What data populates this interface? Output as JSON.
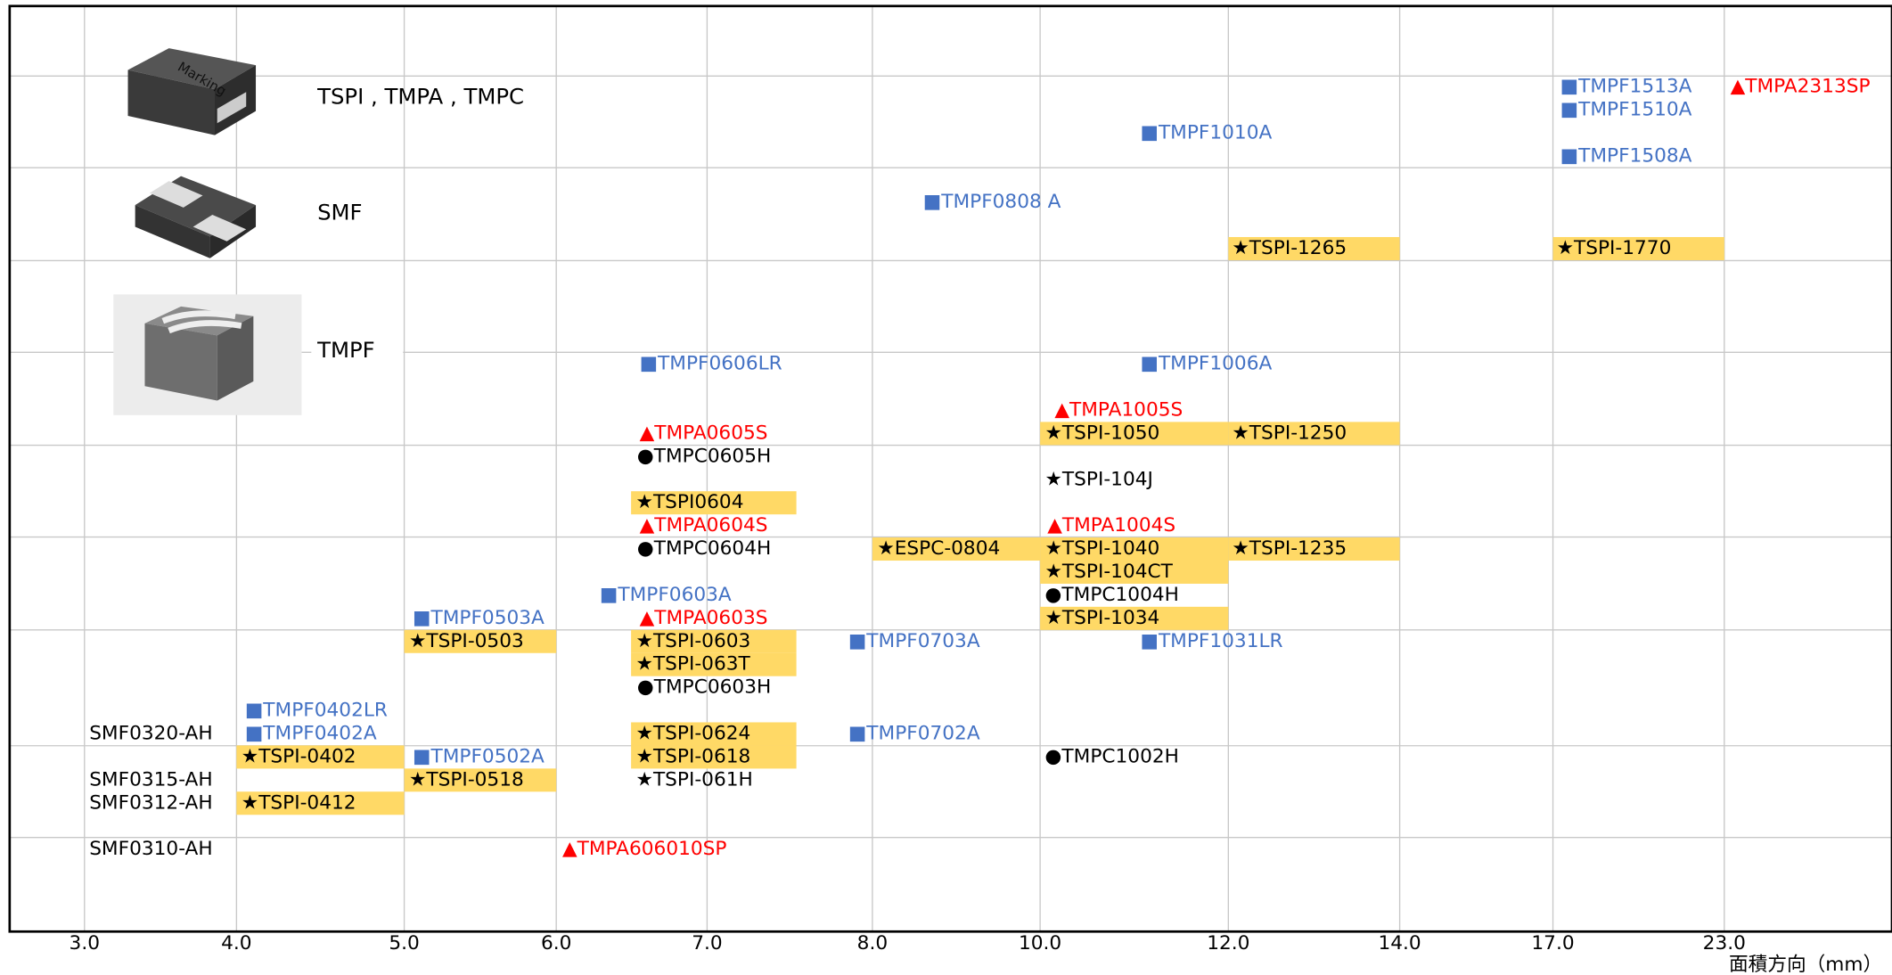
{
  "legend": [
    {
      "label": "TSPI , TMPA , TMPC"
    },
    {
      "label": "SMF"
    },
    {
      "label": "TMPF"
    }
  ],
  "side_labels": [
    "SMF0320-AH",
    "SMF0315-AH",
    "SMF0312-AH",
    "SMF0310-AH"
  ],
  "items": [
    {
      "text": "■TMPF1513A",
      "color": "#4472c4"
    },
    {
      "text": "▲TMPA2313SP",
      "color": "#ff0000"
    },
    {
      "text": "■TMPF1510A",
      "color": "#4472c4"
    },
    {
      "text": "■TMPF1010A",
      "color": "#4472c4"
    },
    {
      "text": "■TMPF1508A",
      "color": "#4472c4"
    },
    {
      "text": "■TMPF0808 A",
      "color": "#4472c4"
    },
    {
      "text": "★TSPI-1265",
      "color": "#000000",
      "highlight": true
    },
    {
      "text": "★TSPI-1770",
      "color": "#000000",
      "highlight": true
    },
    {
      "text": "■TMPF0606LR",
      "color": "#4472c4"
    },
    {
      "text": "■TMPF1006A",
      "color": "#4472c4"
    },
    {
      "text": "▲TMPA1005S",
      "color": "#ff0000"
    },
    {
      "text": "▲TMPA0605S",
      "color": "#ff0000"
    },
    {
      "text": "★TSPI-1050",
      "color": "#000000",
      "highlight": true
    },
    {
      "text": "★TSPI-1250",
      "color": "#000000",
      "highlight": true
    },
    {
      "text": "●TMPC0605H",
      "color": "#000000"
    },
    {
      "text": "★TSPI-104J",
      "color": "#000000"
    },
    {
      "text": "★TSPI0604",
      "color": "#000000",
      "highlight": true
    },
    {
      "text": "▲TMPA0604S",
      "color": "#ff0000"
    },
    {
      "text": "▲TMPA1004S",
      "color": "#ff0000"
    },
    {
      "text": "●TMPC0604H",
      "color": "#000000"
    },
    {
      "text": "★ESPC-0804",
      "color": "#000000",
      "highlight": true
    },
    {
      "text": "★TSPI-1040",
      "color": "#000000",
      "highlight": true
    },
    {
      "text": "★TSPI-1235",
      "color": "#000000",
      "highlight": true
    },
    {
      "text": "★TSPI-104CT",
      "color": "#000000",
      "highlight": true
    },
    {
      "text": "■TMPF0603A",
      "color": "#4472c4"
    },
    {
      "text": "●TMPC1004H",
      "color": "#000000"
    },
    {
      "text": "■TMPF0503A",
      "color": "#4472c4"
    },
    {
      "text": "▲TMPA0603S",
      "color": "#ff0000"
    },
    {
      "text": "★TSPI-1034",
      "color": "#000000",
      "highlight": true
    },
    {
      "text": "★TSPI-0503",
      "color": "#000000",
      "highlight": true
    },
    {
      "text": "★TSPI-0603",
      "color": "#000000",
      "highlight": true
    },
    {
      "text": "■TMPF0703A",
      "color": "#4472c4"
    },
    {
      "text": "■TMPF1031LR",
      "color": "#4472c4"
    },
    {
      "text": "★TSPI-063T",
      "color": "#000000",
      "highlight": true
    },
    {
      "text": "●TMPC0603H",
      "color": "#000000"
    },
    {
      "text": "■TMPF0402LR",
      "color": "#4472c4"
    },
    {
      "text": "■TMPF0402A",
      "color": "#4472c4"
    },
    {
      "text": "★TSPI-0624",
      "color": "#000000",
      "highlight": true
    },
    {
      "text": "■TMPF0702A",
      "color": "#4472c4"
    },
    {
      "text": "★TSPI-0402",
      "color": "#000000",
      "highlight": true
    },
    {
      "text": "■TMPF0502A",
      "color": "#4472c4"
    },
    {
      "text": "★TSPI-0618",
      "color": "#000000",
      "highlight": true
    },
    {
      "text": "●TMPC1002H",
      "color": "#000000"
    },
    {
      "text": "★TSPI-0518",
      "color": "#000000",
      "highlight": true
    },
    {
      "text": "★TSPI-061H",
      "color": "#000000"
    },
    {
      "text": "★TSPI-0412",
      "color": "#000000",
      "highlight": true
    },
    {
      "text": "▲TMPA606010SP",
      "color": "#ff0000"
    }
  ],
  "x_axis": {
    "ticks": [
      "3.0",
      "4.0",
      "5.0",
      "6.0",
      "7.0",
      "8.0",
      "10.0",
      "12.0",
      "14.0",
      "17.0",
      "23.0"
    ],
    "title": "面積方向（mm）"
  }
}
